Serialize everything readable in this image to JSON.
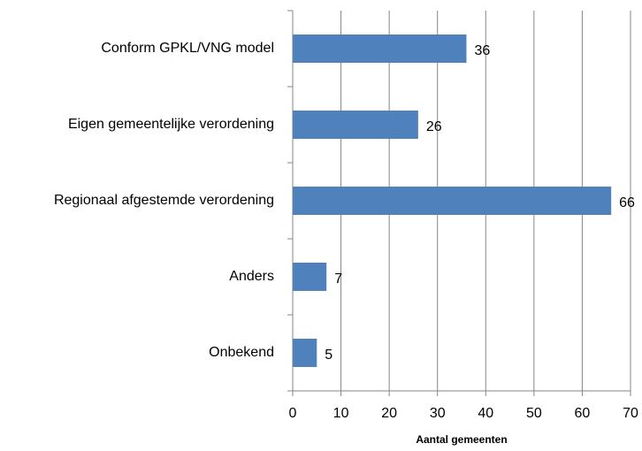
{
  "chart_data": {
    "type": "barh",
    "categories": [
      "Conform GPKL/VNG model",
      "Eigen gemeentelijke verordening",
      "Regionaal afgestemde verordening",
      "Anders",
      "Onbekend"
    ],
    "values": [
      36,
      26,
      66,
      7,
      5
    ],
    "color": "#4f81bd",
    "xlabel": "Aantal gemeenten",
    "xlim": [
      0,
      70
    ],
    "xticks": [
      0,
      10,
      20,
      30,
      40,
      50,
      60,
      70
    ],
    "grid": true
  }
}
